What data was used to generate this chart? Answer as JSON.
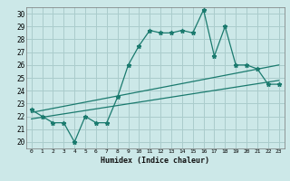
{
  "title": "",
  "xlabel": "Humidex (Indice chaleur)",
  "bg_color": "#cce8e8",
  "grid_color": "#aacccc",
  "line_color": "#1a7a6e",
  "x_ticks": [
    0,
    1,
    2,
    3,
    4,
    5,
    6,
    7,
    8,
    9,
    10,
    11,
    12,
    13,
    14,
    15,
    16,
    17,
    18,
    19,
    20,
    21,
    22,
    23
  ],
  "y_ticks": [
    20,
    21,
    22,
    23,
    24,
    25,
    26,
    27,
    28,
    29,
    30
  ],
  "xlim": [
    -0.5,
    23.5
  ],
  "ylim": [
    19.5,
    30.5
  ],
  "series1_x": [
    0,
    1,
    2,
    3,
    4,
    5,
    6,
    7,
    8,
    9,
    10,
    11,
    12,
    13,
    14,
    15,
    16,
    17,
    18,
    19,
    20,
    21,
    22,
    23
  ],
  "series1_y": [
    22.5,
    22.0,
    21.5,
    21.5,
    20.0,
    22.0,
    21.5,
    21.5,
    23.5,
    26.0,
    27.5,
    28.7,
    28.5,
    28.5,
    28.7,
    28.5,
    30.3,
    26.7,
    29.0,
    26.0,
    26.0,
    25.7,
    24.5,
    24.5
  ],
  "series2_x": [
    0,
    23
  ],
  "series2_y": [
    22.3,
    26.0
  ],
  "series3_x": [
    0,
    23
  ],
  "series3_y": [
    21.8,
    24.8
  ]
}
